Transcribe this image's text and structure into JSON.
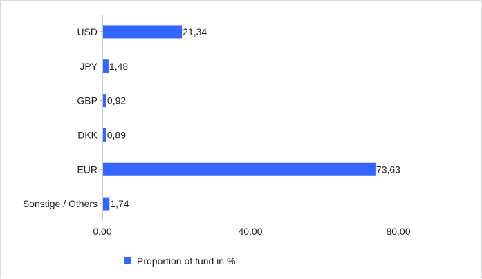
{
  "chart_data": {
    "type": "bar",
    "orientation": "horizontal",
    "categories": [
      "USD",
      "JPY",
      "GBP",
      "DKK",
      "EUR",
      "Sonstige / Others"
    ],
    "values": [
      21.34,
      1.48,
      0.92,
      0.89,
      73.63,
      1.74
    ],
    "value_labels": [
      "21,34",
      "1,48",
      "0,92",
      "0,89",
      "73,63",
      "1,74"
    ],
    "xlim": [
      0,
      80
    ],
    "xticks": [
      0,
      40,
      80
    ],
    "xtick_labels": [
      "0,00",
      "40,00",
      "80,00"
    ],
    "grid": false,
    "legend": {
      "position": "bottom",
      "entries": [
        {
          "name": "Proportion of fund in %",
          "color": "#3366ff"
        }
      ]
    },
    "series": [
      {
        "name": "Proportion of fund in %",
        "color": "#3366ff"
      }
    ]
  }
}
